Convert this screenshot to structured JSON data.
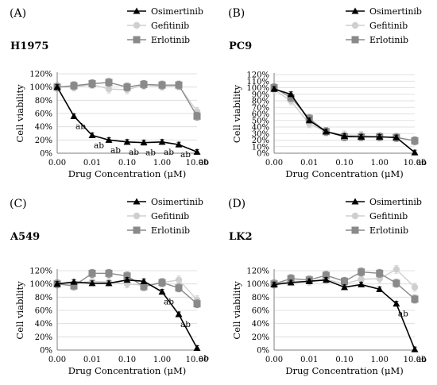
{
  "panels": [
    {
      "tag": "(A)",
      "cell_line": "H1975"
    },
    {
      "tag": "(B)",
      "cell_line": "PC9"
    },
    {
      "tag": "(C)",
      "cell_line": "A549"
    },
    {
      "tag": "(D)",
      "cell_line": "LK2"
    }
  ],
  "colors": {
    "Osimertinib": "#000000",
    "Gefitinib": "#cfcfcf",
    "Erlotinib": "#8a8a8a"
  },
  "chart_data": [
    {
      "type": "line",
      "xscale": "log",
      "xlabel": "Drug Concentration (μM)",
      "ylabel": "Cell viability",
      "xticks": [
        "0.00",
        "0.01",
        "0.10",
        "1.00",
        "10.00"
      ],
      "yticks": [
        "0%",
        "20%",
        "40%",
        "60%",
        "80%",
        "100%",
        "120%"
      ],
      "ylim": [
        0,
        120
      ],
      "x": [
        0.001,
        0.003,
        0.01,
        0.03,
        0.1,
        0.3,
        1,
        3,
        10
      ],
      "series": [
        {
          "name": "Osimertinib",
          "marker": "triangle",
          "values": [
            100,
            56,
            27,
            20,
            17,
            16,
            17,
            13,
            2
          ],
          "labels": [
            "",
            "ab",
            "ab",
            "ab",
            "ab",
            "ab",
            "ab",
            "ab",
            "ab"
          ]
        },
        {
          "name": "Gefitinib",
          "marker": "circle",
          "values": [
            100,
            100,
            104,
            97,
            96,
            103,
            101,
            102,
            63
          ]
        },
        {
          "name": "Erlotinib",
          "marker": "square",
          "values": [
            100,
            102,
            105,
            107,
            100,
            104,
            103,
            103,
            56
          ]
        }
      ]
    },
    {
      "type": "line",
      "xscale": "log",
      "xlabel": "Drug Concentration (μM)",
      "ylabel": "Cell viability",
      "xticks": [
        "0.00",
        "0.01",
        "0.10",
        "1.00",
        "10.00"
      ],
      "yticks": [
        "0%",
        "10%",
        "20%",
        "30%",
        "40%",
        "50%",
        "60%",
        "70%",
        "80%",
        "90%",
        "100%",
        "110%",
        "120%"
      ],
      "ylim": [
        0,
        120
      ],
      "x": [
        0.001,
        0.003,
        0.01,
        0.03,
        0.1,
        0.3,
        1,
        3,
        10
      ],
      "series": [
        {
          "name": "Osimertinib",
          "marker": "triangle",
          "values": [
            98,
            90,
            50,
            33,
            26,
            25,
            25,
            24,
            1
          ],
          "labels": [
            "",
            "",
            "",
            "",
            "",
            "",
            "",
            "",
            "ab"
          ]
        },
        {
          "name": "Gefitinib",
          "marker": "circle",
          "values": [
            97,
            80,
            45,
            33,
            28,
            27,
            25,
            24,
            19
          ]
        },
        {
          "name": "Erlotinib",
          "marker": "square",
          "values": [
            100,
            85,
            53,
            33,
            25,
            25,
            25,
            24,
            19
          ]
        }
      ]
    },
    {
      "type": "line",
      "xscale": "log",
      "xlabel": "Drug Concentration (μM)",
      "ylabel": "Cell viability",
      "xticks": [
        "0.00",
        "0.01",
        "0.10",
        "1.00",
        "10.00"
      ],
      "yticks": [
        "0%",
        "20%",
        "40%",
        "60%",
        "80%",
        "100%",
        "120%"
      ],
      "ylim": [
        0,
        120
      ],
      "x": [
        0.001,
        0.003,
        0.01,
        0.03,
        0.1,
        0.3,
        1,
        3,
        10
      ],
      "series": [
        {
          "name": "Osimertinib",
          "marker": "triangle",
          "values": [
            100,
            103,
            101,
            101,
            106,
            104,
            88,
            54,
            3
          ],
          "labels": [
            "",
            "",
            "",
            "",
            "",
            "",
            "ab",
            "ab",
            "ab"
          ]
        },
        {
          "name": "Gefitinib",
          "marker": "circle",
          "values": [
            100,
            100,
            104,
            103,
            100,
            98,
            102,
            106,
            76
          ]
        },
        {
          "name": "Erlotinib",
          "marker": "square",
          "values": [
            100,
            97,
            116,
            116,
            112,
            96,
            102,
            94,
            70
          ]
        }
      ]
    },
    {
      "type": "line",
      "xscale": "log",
      "xlabel": "Drug Concentration (μM)",
      "ylabel": "Cell viability",
      "xticks": [
        "0.00",
        "0.01",
        "0.10",
        "1.00",
        "10.00"
      ],
      "yticks": [
        "0%",
        "20%",
        "40%",
        "60%",
        "80%",
        "100%",
        "120%"
      ],
      "ylim": [
        0,
        120
      ],
      "x": [
        0.001,
        0.003,
        0.01,
        0.03,
        0.1,
        0.3,
        1,
        3,
        10
      ],
      "series": [
        {
          "name": "Osimertinib",
          "marker": "triangle",
          "values": [
            99,
            102,
            104,
            106,
            95,
            99,
            92,
            70,
            1
          ],
          "labels": [
            "",
            "",
            "",
            "",
            "",
            "",
            "",
            "ab",
            "ab"
          ]
        },
        {
          "name": "Gefitinib",
          "marker": "circle",
          "values": [
            100,
            104,
            104,
            107,
            100,
            107,
            108,
            122,
            95
          ]
        },
        {
          "name": "Erlotinib",
          "marker": "square",
          "values": [
            100,
            108,
            106,
            113,
            104,
            118,
            116,
            101,
            77
          ]
        }
      ]
    }
  ]
}
